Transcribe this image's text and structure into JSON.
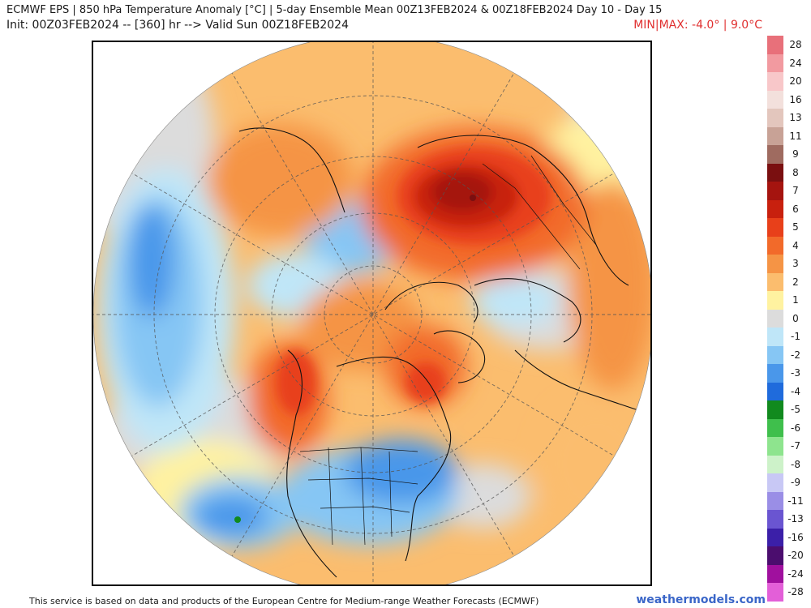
{
  "header": {
    "title_line1": "ECMWF EPS | 850 hPa Temperature Anomaly [°C] | 5-day Ensemble Mean 00Z13FEB2024 & 00Z18FEB2024   Day 10 - Day 15",
    "title_line2": "Init: 00Z03FEB2024 -- [360] hr --> Valid Sun 00Z18FEB2024",
    "minmax": "MIN|MAX: -4.0° | 9.0°C"
  },
  "colors": {
    "minmax_text": "#e03030",
    "brand_text": "#3a66c8",
    "missing_ocean": "#d9d9d9"
  },
  "colorbar": {
    "levels": [
      {
        "label": "28",
        "color": "#e8707a"
      },
      {
        "label": "24",
        "color": "#f29aa0"
      },
      {
        "label": "20",
        "color": "#f8c7c9"
      },
      {
        "label": "16",
        "color": "#f3e0dc"
      },
      {
        "label": "13",
        "color": "#e3c6bd"
      },
      {
        "label": "11",
        "color": "#c8a296"
      },
      {
        "label": "9",
        "color": "#9f6b60"
      },
      {
        "label": "8",
        "color": "#7a0f10"
      },
      {
        "label": "7",
        "color": "#a5140f"
      },
      {
        "label": "6",
        "color": "#c8200e"
      },
      {
        "label": "5",
        "color": "#e8401a"
      },
      {
        "label": "4",
        "color": "#f26a2a"
      },
      {
        "label": "3",
        "color": "#f59445"
      },
      {
        "label": "2",
        "color": "#fbbd6e"
      },
      {
        "label": "1",
        "color": "#fff2a0"
      },
      {
        "label": "0",
        "color": "#dcdcdc"
      },
      {
        "label": "-1",
        "color": "#bfe6f8"
      },
      {
        "label": "-2",
        "color": "#86c6f4"
      },
      {
        "label": "-3",
        "color": "#4a97ea"
      },
      {
        "label": "-4",
        "color": "#1f6bdc"
      },
      {
        "label": "-5",
        "color": "#118a1e"
      },
      {
        "label": "-6",
        "color": "#3fbf4c"
      },
      {
        "label": "-7",
        "color": "#8ee48e"
      },
      {
        "label": "-8",
        "color": "#cdf2c9"
      },
      {
        "label": "-9",
        "color": "#c8c8f5"
      },
      {
        "label": "-11",
        "color": "#9a8ee6"
      },
      {
        "label": "-13",
        "color": "#6a55d1"
      },
      {
        "label": "-16",
        "color": "#3b1fa8"
      },
      {
        "label": "-20",
        "color": "#4b0d6e"
      },
      {
        "label": "-24",
        "color": "#a0109e"
      },
      {
        "label": "-28",
        "color": "#e35fd8"
      }
    ]
  },
  "footer": {
    "credit": "This service is based on data and products of the European Centre for Medium-range Weather Forecasts (ECMWF)",
    "brand": "weathermodels.com"
  }
}
